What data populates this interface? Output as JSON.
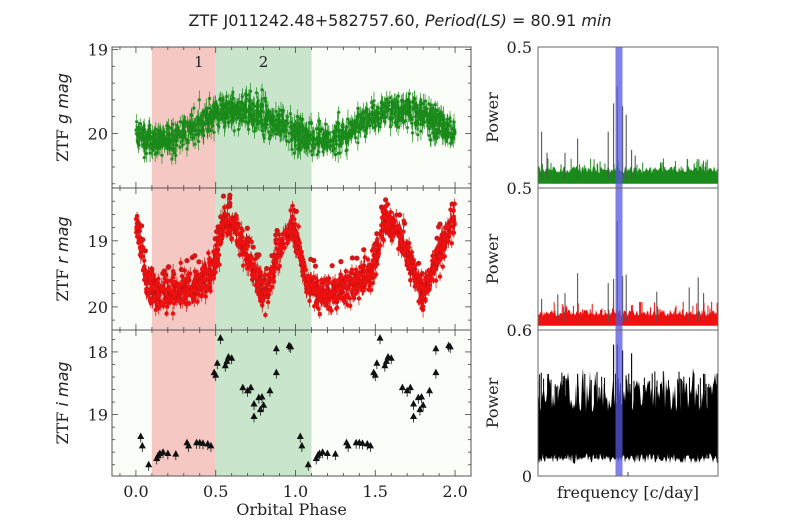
{
  "title": {
    "object": "ZTF J011242.48+582757.60,",
    "period_label": "Period(LS)",
    "equals": " = ",
    "period_value": "80.91",
    "period_unit": "min"
  },
  "chart_data": [
    {
      "type": "scatter",
      "panel": "g-band light curve",
      "ylabel_prefix": "ZTF ",
      "ylabel_italic": "g mag",
      "xlim": [
        -0.15,
        2.1
      ],
      "ylim_inverted": [
        20.65,
        18.97
      ],
      "yticks": [
        19,
        20
      ],
      "ytick_labels": [
        "19",
        "20"
      ],
      "marker": "asterisk",
      "color": "#1a8a1a",
      "shaded_regions": [
        {
          "label": "1",
          "x": [
            0.1,
            0.5
          ],
          "color": "#f4b6b0"
        },
        {
          "label": "2",
          "x": [
            0.5,
            1.1
          ],
          "color": "#b8dcbc"
        }
      ],
      "model": {
        "description": "sinusoid, brightest near phase 0.65 and 1.65",
        "mean_mag": 19.9,
        "amplitude_mag": 0.18,
        "scatter_mag": 0.15
      }
    },
    {
      "type": "scatter",
      "panel": "r-band light curve",
      "ylabel_prefix": "ZTF ",
      "ylabel_italic": "r mag",
      "xlim": [
        -0.15,
        2.1
      ],
      "ylim_inverted": [
        20.35,
        18.2
      ],
      "yticks": [
        19,
        20
      ],
      "ytick_labels": [
        "19",
        "20"
      ],
      "marker": "circle",
      "color": "#ee1111",
      "shaded_regions": [
        {
          "x": [
            0.1,
            0.5
          ],
          "color": "#f4b6b0"
        },
        {
          "x": [
            0.5,
            1.1
          ],
          "color": "#b8dcbc"
        }
      ],
      "profile": [
        [
          0.0,
          18.6
        ],
        [
          0.07,
          19.65
        ],
        [
          0.15,
          19.8
        ],
        [
          0.3,
          19.75
        ],
        [
          0.45,
          19.55
        ],
        [
          0.5,
          19.3
        ],
        [
          0.55,
          18.7
        ],
        [
          0.63,
          18.8
        ],
        [
          0.8,
          19.8
        ],
        [
          0.9,
          19.2
        ],
        [
          0.98,
          18.7
        ],
        [
          1.03,
          19.2
        ],
        [
          1.07,
          19.65
        ],
        [
          1.15,
          19.8
        ],
        [
          1.3,
          19.75
        ],
        [
          1.45,
          19.55
        ],
        [
          1.5,
          19.3
        ],
        [
          1.55,
          18.7
        ],
        [
          1.63,
          18.8
        ],
        [
          1.8,
          19.8
        ],
        [
          1.9,
          19.2
        ],
        [
          1.98,
          18.7
        ]
      ]
    },
    {
      "type": "scatter",
      "panel": "i-band light curve",
      "ylabel_prefix": "ZTF ",
      "ylabel_italic": "i mag",
      "xlabel": "Orbital Phase",
      "xlim": [
        -0.15,
        2.1
      ],
      "xticks": [
        0.0,
        0.5,
        1.0,
        1.5,
        2.0
      ],
      "xtick_labels": [
        "0.0",
        "0.5",
        "1.0",
        "1.5",
        "2.0"
      ],
      "ylim_inverted": [
        19.98,
        17.65
      ],
      "yticks": [
        18,
        19
      ],
      "ytick_labels": [
        "18",
        "19"
      ],
      "marker": "triangle",
      "color": "#111111",
      "shaded_regions": [
        {
          "x": [
            0.1,
            0.5
          ],
          "color": "#f4b6b0"
        },
        {
          "x": [
            0.5,
            1.1
          ],
          "color": "#b8dcbc"
        }
      ],
      "points": [
        [
          0.03,
          19.35
        ],
        [
          0.04,
          19.5
        ],
        [
          0.08,
          19.8
        ],
        [
          0.13,
          19.7
        ],
        [
          0.14,
          19.65
        ],
        [
          0.15,
          19.62
        ],
        [
          0.17,
          19.6
        ],
        [
          0.2,
          19.62
        ],
        [
          0.25,
          19.63
        ],
        [
          0.32,
          19.45
        ],
        [
          0.33,
          19.5
        ],
        [
          0.38,
          19.45
        ],
        [
          0.4,
          19.45
        ],
        [
          0.42,
          19.46
        ],
        [
          0.45,
          19.47
        ],
        [
          0.47,
          19.5
        ],
        [
          0.49,
          18.33
        ],
        [
          0.5,
          18.37
        ],
        [
          0.51,
          18.18
        ],
        [
          0.53,
          17.78
        ],
        [
          0.56,
          18.22
        ],
        [
          0.57,
          18.15
        ],
        [
          0.58,
          18.08
        ],
        [
          0.6,
          18.1
        ],
        [
          0.67,
          18.57
        ],
        [
          0.7,
          18.62
        ],
        [
          0.72,
          18.57
        ],
        [
          0.74,
          18.83
        ],
        [
          0.74,
          19.03
        ],
        [
          0.77,
          18.73
        ],
        [
          0.78,
          18.92
        ],
        [
          0.79,
          18.72
        ],
        [
          0.8,
          18.85
        ],
        [
          0.84,
          18.62
        ],
        [
          0.88,
          17.95
        ],
        [
          0.88,
          18.33
        ],
        [
          0.96,
          17.9
        ],
        [
          0.97,
          17.92
        ],
        [
          1.03,
          19.35
        ],
        [
          1.04,
          19.5
        ],
        [
          1.08,
          19.8
        ],
        [
          1.13,
          19.7
        ],
        [
          1.14,
          19.65
        ],
        [
          1.15,
          19.62
        ],
        [
          1.17,
          19.6
        ],
        [
          1.2,
          19.62
        ],
        [
          1.25,
          19.63
        ],
        [
          1.32,
          19.45
        ],
        [
          1.33,
          19.5
        ],
        [
          1.38,
          19.45
        ],
        [
          1.4,
          19.45
        ],
        [
          1.42,
          19.46
        ],
        [
          1.45,
          19.47
        ],
        [
          1.47,
          19.5
        ],
        [
          1.49,
          18.33
        ],
        [
          1.5,
          18.37
        ],
        [
          1.51,
          18.18
        ],
        [
          1.53,
          17.78
        ],
        [
          1.56,
          18.22
        ],
        [
          1.57,
          18.15
        ],
        [
          1.58,
          18.08
        ],
        [
          1.6,
          18.1
        ],
        [
          1.67,
          18.57
        ],
        [
          1.7,
          18.62
        ],
        [
          1.72,
          18.57
        ],
        [
          1.74,
          18.83
        ],
        [
          1.74,
          19.03
        ],
        [
          1.77,
          18.73
        ],
        [
          1.78,
          18.92
        ],
        [
          1.79,
          18.72
        ],
        [
          1.8,
          18.85
        ],
        [
          1.84,
          18.62
        ],
        [
          1.88,
          17.95
        ],
        [
          1.88,
          18.33
        ],
        [
          1.96,
          17.9
        ],
        [
          1.97,
          17.92
        ]
      ]
    },
    {
      "type": "line",
      "panel": "g-band periodogram",
      "ylabel": "Power",
      "ytick_labels_top_bottom": [
        "0.5",
        "0.5"
      ],
      "color": "#1a8a1a",
      "highlight_frequency_fraction": 0.45,
      "highlight_color": "#5555dd",
      "noise_floor_fraction": 0.13,
      "peaks": [
        [
          0.02,
          0.4
        ],
        [
          0.05,
          0.25
        ],
        [
          0.15,
          0.25
        ],
        [
          0.22,
          0.35
        ],
        [
          0.39,
          0.4
        ],
        [
          0.42,
          0.6
        ],
        [
          0.44,
          0.72
        ],
        [
          0.47,
          0.58
        ],
        [
          0.49,
          0.52
        ],
        [
          0.52,
          0.27
        ],
        [
          0.54,
          0.23
        ]
      ]
    },
    {
      "type": "line",
      "panel": "r-band periodogram",
      "ylabel": "Power",
      "ytick_labels_top_bottom": [
        "0.5",
        "0.6"
      ],
      "color": "#ee1111",
      "highlight_frequency_fraction": 0.45,
      "highlight_color": "#5555dd",
      "noise_floor_fraction": 0.12,
      "peaks": [
        [
          0.02,
          0.22
        ],
        [
          0.11,
          0.25
        ],
        [
          0.15,
          0.26
        ],
        [
          0.22,
          0.4
        ],
        [
          0.39,
          0.33
        ],
        [
          0.42,
          0.36
        ],
        [
          0.44,
          0.77
        ],
        [
          0.47,
          0.38
        ],
        [
          0.49,
          0.39
        ],
        [
          0.66,
          0.27
        ],
        [
          0.84,
          0.3
        ],
        [
          0.89,
          0.37
        ],
        [
          0.92,
          0.26
        ]
      ]
    },
    {
      "type": "line",
      "panel": "i-band periodogram",
      "ylabel": "Power",
      "xlabel": "frequency [c/day]",
      "ytick_labels_top_bottom": [
        "0.6",
        "0"
      ],
      "color": "#000000",
      "highlight_frequency_fraction": 0.45,
      "highlight_color": "#5555dd",
      "noise_floor_fraction": 0.55,
      "noise_base_fraction": 0.12,
      "peaks": [
        [
          0.22,
          0.7
        ],
        [
          0.26,
          0.7
        ],
        [
          0.42,
          0.9
        ],
        [
          0.44,
          0.9
        ],
        [
          0.47,
          0.86
        ],
        [
          0.52,
          0.84
        ],
        [
          0.62,
          0.65
        ],
        [
          0.8,
          0.65
        ],
        [
          0.92,
          0.7
        ]
      ]
    }
  ]
}
